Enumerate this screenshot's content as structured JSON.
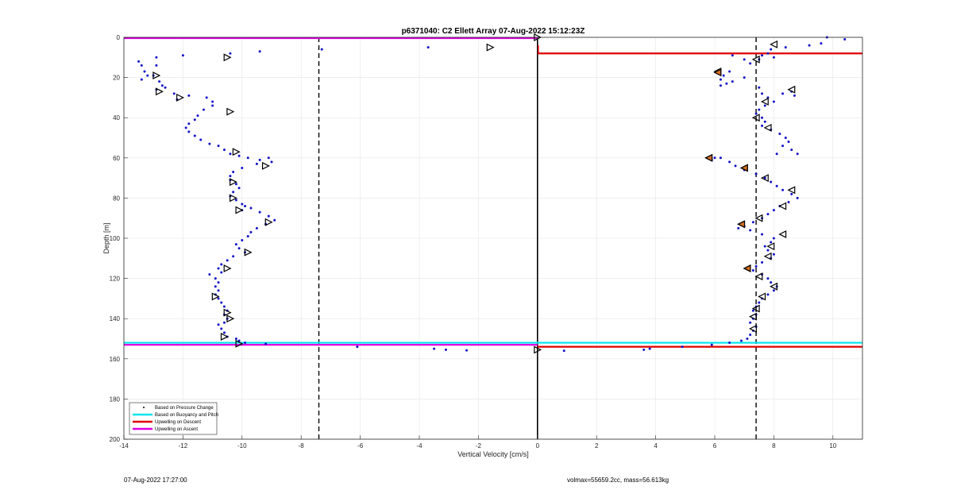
{
  "chart_data": {
    "type": "scatter",
    "title": "p6371040: C2 Ellett Array 07-Aug-2022 15:12:23Z",
    "xlabel": "Vertical Velocity [cm/s]",
    "ylabel": "Depth [m]",
    "xlim": [
      -14,
      11
    ],
    "ylim": [
      0,
      200
    ],
    "y_reversed": true,
    "grid": true,
    "xticks": [
      -14,
      -12,
      -10,
      -8,
      -6,
      -4,
      -2,
      0,
      2,
      4,
      6,
      8,
      10
    ],
    "yticks": [
      0,
      20,
      40,
      60,
      80,
      100,
      120,
      140,
      160,
      180,
      200
    ],
    "legend_position": "bottom-left",
    "legend": [
      {
        "label": "Based on Pressure Change",
        "marker": "dot",
        "color": "#000000"
      },
      {
        "label": "Based on Buoyancy and Pitch",
        "marker": "line",
        "color": "#00e5ee"
      },
      {
        "label": "Upwelling on Descent",
        "marker": "line",
        "color": "#e00000"
      },
      {
        "label": "Upwelling on Ascent",
        "marker": "line",
        "color": "#e000e0"
      }
    ],
    "reference_lines": [
      {
        "orientation": "vertical",
        "x": -7.4,
        "style": "dashed",
        "color": "#000000"
      },
      {
        "orientation": "vertical",
        "x": 7.4,
        "style": "dashed",
        "color": "#000000"
      },
      {
        "orientation": "vertical",
        "x": 0,
        "style": "solid",
        "color": "#000000"
      }
    ],
    "horizontal_segments": [
      {
        "series": "Upwelling on Ascent",
        "y": 0.4,
        "x_from": -14,
        "x_to": 0,
        "color": "#e000e0"
      },
      {
        "series": "Upwelling on Ascent",
        "y": 153,
        "x_from": -14,
        "x_to": 0,
        "color": "#e000e0"
      },
      {
        "series": "Based on Buoyancy and Pitch",
        "y": 152,
        "x_from": -14,
        "x_to": 11,
        "color": "#00e5ee"
      },
      {
        "series": "Upwelling on Descent",
        "y": 8,
        "x_from": 0,
        "x_to": 11,
        "color": "#e00000"
      },
      {
        "series": "Upwelling on Descent",
        "y": 154,
        "x_from": 0,
        "x_to": 11,
        "color": "#e00000"
      }
    ],
    "pressure_points": {
      "ascent": [
        [
          -13.5,
          12
        ],
        [
          -13.4,
          14
        ],
        [
          -13.3,
          17
        ],
        [
          -13.2,
          19
        ],
        [
          -13.4,
          21
        ],
        [
          -12.9,
          10
        ],
        [
          -12.9,
          14
        ],
        [
          -13.0,
          19
        ],
        [
          -12.8,
          22
        ],
        [
          -12.7,
          24
        ],
        [
          -12.9,
          26
        ],
        [
          -12.6,
          25
        ],
        [
          -12.3,
          28
        ],
        [
          -12.2,
          31
        ],
        [
          -11.8,
          29
        ],
        [
          -11.2,
          30
        ],
        [
          -11.0,
          32
        ],
        [
          -11.0,
          34
        ],
        [
          -11.3,
          36
        ],
        [
          -11.5,
          39
        ],
        [
          -11.6,
          41
        ],
        [
          -11.8,
          43
        ],
        [
          -11.9,
          45
        ],
        [
          -11.8,
          47
        ],
        [
          -11.6,
          49
        ],
        [
          -11.4,
          51
        ],
        [
          -11.1,
          53
        ],
        [
          -10.8,
          54
        ],
        [
          -10.6,
          56
        ],
        [
          -10.4,
          58
        ],
        [
          -10.1,
          59
        ],
        [
          -9.8,
          60
        ],
        [
          -9.4,
          61
        ],
        [
          -9.0,
          62
        ],
        [
          -9.1,
          60
        ],
        [
          -9.5,
          63
        ],
        [
          -10.0,
          65
        ],
        [
          -10.3,
          67
        ],
        [
          -10.4,
          69
        ],
        [
          -10.4,
          71
        ],
        [
          -10.2,
          73
        ],
        [
          -10.1,
          75
        ],
        [
          -10.3,
          77
        ],
        [
          -10.4,
          79
        ],
        [
          -10.2,
          81
        ],
        [
          -10.0,
          83
        ],
        [
          -9.9,
          84
        ],
        [
          -10.0,
          86
        ],
        [
          -9.7,
          85
        ],
        [
          -9.4,
          87
        ],
        [
          -9.1,
          89
        ],
        [
          -8.9,
          91
        ],
        [
          -9.2,
          93
        ],
        [
          -9.5,
          95
        ],
        [
          -9.7,
          97
        ],
        [
          -9.8,
          99
        ],
        [
          -10.0,
          101
        ],
        [
          -10.2,
          103
        ],
        [
          -10.1,
          105
        ],
        [
          -9.9,
          107
        ],
        [
          -10.3,
          109
        ],
        [
          -10.5,
          111
        ],
        [
          -10.7,
          113
        ],
        [
          -10.8,
          115
        ],
        [
          -10.7,
          117
        ],
        [
          -11.1,
          118
        ],
        [
          -10.9,
          120
        ],
        [
          -10.8,
          122
        ],
        [
          -10.9,
          124
        ],
        [
          -10.8,
          126
        ],
        [
          -10.9,
          128
        ],
        [
          -10.8,
          130
        ],
        [
          -10.7,
          132
        ],
        [
          -10.6,
          134
        ],
        [
          -10.5,
          136
        ],
        [
          -10.6,
          138
        ],
        [
          -10.5,
          140
        ],
        [
          -10.6,
          142
        ],
        [
          -10.8,
          143
        ],
        [
          -10.7,
          145
        ],
        [
          -10.6,
          147
        ],
        [
          -10.5,
          149
        ],
        [
          -10.2,
          150
        ],
        [
          -10.1,
          151
        ],
        [
          -9.9,
          152
        ],
        [
          -9.2,
          152.5
        ],
        [
          -12.0,
          9
        ],
        [
          -10.4,
          8
        ],
        [
          -9.4,
          7
        ],
        [
          -7.3,
          6
        ],
        [
          -3.7,
          5
        ],
        [
          -6.1,
          154
        ],
        [
          -3.5,
          155
        ],
        [
          -3.1,
          155.5
        ],
        [
          -2.4,
          155.8
        ]
      ],
      "descent": [
        [
          9.8,
          0
        ],
        [
          10.4,
          1
        ],
        [
          9.6,
          3
        ],
        [
          9.2,
          4
        ],
        [
          8.4,
          5
        ],
        [
          7.9,
          6
        ],
        [
          7.8,
          8
        ],
        [
          7.6,
          9
        ],
        [
          7.5,
          11
        ],
        [
          7.2,
          13
        ],
        [
          8.0,
          10
        ],
        [
          7.0,
          11
        ],
        [
          6.6,
          9
        ],
        [
          6.5,
          17
        ],
        [
          6.3,
          19
        ],
        [
          6.2,
          21
        ],
        [
          6.4,
          23
        ],
        [
          6.2,
          24
        ],
        [
          6.6,
          22
        ],
        [
          7.0,
          20
        ],
        [
          7.5,
          25
        ],
        [
          7.6,
          28
        ],
        [
          7.8,
          30
        ],
        [
          8.0,
          32
        ],
        [
          8.3,
          28
        ],
        [
          8.6,
          27
        ],
        [
          8.7,
          29
        ],
        [
          7.7,
          34
        ],
        [
          7.5,
          36
        ],
        [
          7.4,
          38
        ],
        [
          7.6,
          40
        ],
        [
          7.7,
          42
        ],
        [
          7.6,
          44
        ],
        [
          7.9,
          46
        ],
        [
          8.2,
          48
        ],
        [
          8.4,
          50
        ],
        [
          8.5,
          52
        ],
        [
          8.3,
          54
        ],
        [
          8.6,
          56
        ],
        [
          8.8,
          58
        ],
        [
          8.1,
          58
        ],
        [
          6.2,
          60
        ],
        [
          5.9,
          61
        ],
        [
          6.0,
          60
        ],
        [
          6.5,
          62
        ],
        [
          6.7,
          64
        ],
        [
          7.0,
          66
        ],
        [
          7.4,
          68
        ],
        [
          7.7,
          70
        ],
        [
          7.9,
          72
        ],
        [
          8.1,
          74
        ],
        [
          8.3,
          76
        ],
        [
          8.6,
          78
        ],
        [
          8.8,
          80
        ],
        [
          8.5,
          82
        ],
        [
          8.2,
          84
        ],
        [
          8.0,
          86
        ],
        [
          7.8,
          88
        ],
        [
          7.6,
          90
        ],
        [
          7.3,
          92
        ],
        [
          7.0,
          94
        ],
        [
          6.8,
          95
        ],
        [
          7.2,
          96
        ],
        [
          7.6,
          98
        ],
        [
          8.0,
          100
        ],
        [
          7.9,
          102
        ],
        [
          7.7,
          104
        ],
        [
          7.8,
          106
        ],
        [
          8.0,
          108
        ],
        [
          7.9,
          110
        ],
        [
          7.6,
          112
        ],
        [
          7.4,
          114
        ],
        [
          7.3,
          116
        ],
        [
          7.6,
          118
        ],
        [
          7.8,
          120
        ],
        [
          7.9,
          122
        ],
        [
          8.1,
          124
        ],
        [
          8.0,
          126
        ],
        [
          7.8,
          128
        ],
        [
          7.6,
          130
        ],
        [
          7.5,
          132
        ],
        [
          7.4,
          134
        ],
        [
          7.3,
          136
        ],
        [
          7.4,
          138
        ],
        [
          7.3,
          140
        ],
        [
          7.2,
          142
        ],
        [
          7.4,
          144
        ],
        [
          7.3,
          146
        ],
        [
          7.2,
          148
        ],
        [
          7.1,
          150
        ],
        [
          6.9,
          151
        ],
        [
          6.5,
          152
        ],
        [
          5.9,
          153
        ],
        [
          4.9,
          154
        ],
        [
          3.8,
          155
        ],
        [
          3.6,
          155.5
        ],
        [
          0.9,
          156
        ]
      ]
    },
    "buoyancy_points": {
      "ascent": [
        [
          -10.5,
          10
        ],
        [
          -12.9,
          19
        ],
        [
          -12.8,
          27
        ],
        [
          -12.1,
          30
        ],
        [
          -10.4,
          37
        ],
        [
          -10.2,
          57
        ],
        [
          -9.2,
          64
        ],
        [
          -10.3,
          72
        ],
        [
          -10.3,
          80
        ],
        [
          -10.1,
          86
        ],
        [
          -9.1,
          92
        ],
        [
          -9.8,
          107
        ],
        [
          -10.5,
          115
        ],
        [
          -10.9,
          129
        ],
        [
          -10.5,
          137
        ],
        [
          -10.4,
          140
        ],
        [
          -10.6,
          149
        ],
        [
          -10.1,
          152.5
        ],
        [
          -1.6,
          5
        ],
        [
          0,
          0
        ],
        [
          0,
          155.5
        ]
      ],
      "descent": [
        [
          8.0,
          3.5
        ],
        [
          7.4,
          11
        ],
        [
          6.1,
          17
        ],
        [
          8.6,
          26
        ],
        [
          7.7,
          32
        ],
        [
          7.4,
          40
        ],
        [
          7.8,
          45
        ],
        [
          5.8,
          60
        ],
        [
          7.0,
          65
        ],
        [
          7.7,
          70
        ],
        [
          8.6,
          76
        ],
        [
          8.3,
          84
        ],
        [
          7.5,
          90
        ],
        [
          6.9,
          93
        ],
        [
          8.3,
          98
        ],
        [
          7.9,
          104
        ],
        [
          7.8,
          109
        ],
        [
          7.1,
          115
        ],
        [
          7.5,
          119
        ],
        [
          8.0,
          124
        ],
        [
          7.6,
          129
        ],
        [
          7.4,
          135
        ],
        [
          7.3,
          139
        ],
        [
          7.3,
          145
        ]
      ],
      "filled_descent": [
        [
          6.1,
          17.5
        ],
        [
          5.8,
          60
        ],
        [
          7.0,
          65
        ],
        [
          6.9,
          93
        ],
        [
          7.1,
          115
        ]
      ]
    }
  },
  "footer": {
    "timestamp": "07-Aug-2022 17:27:00",
    "summary": "volmax=55659.2cc, mass=56.613kg"
  }
}
